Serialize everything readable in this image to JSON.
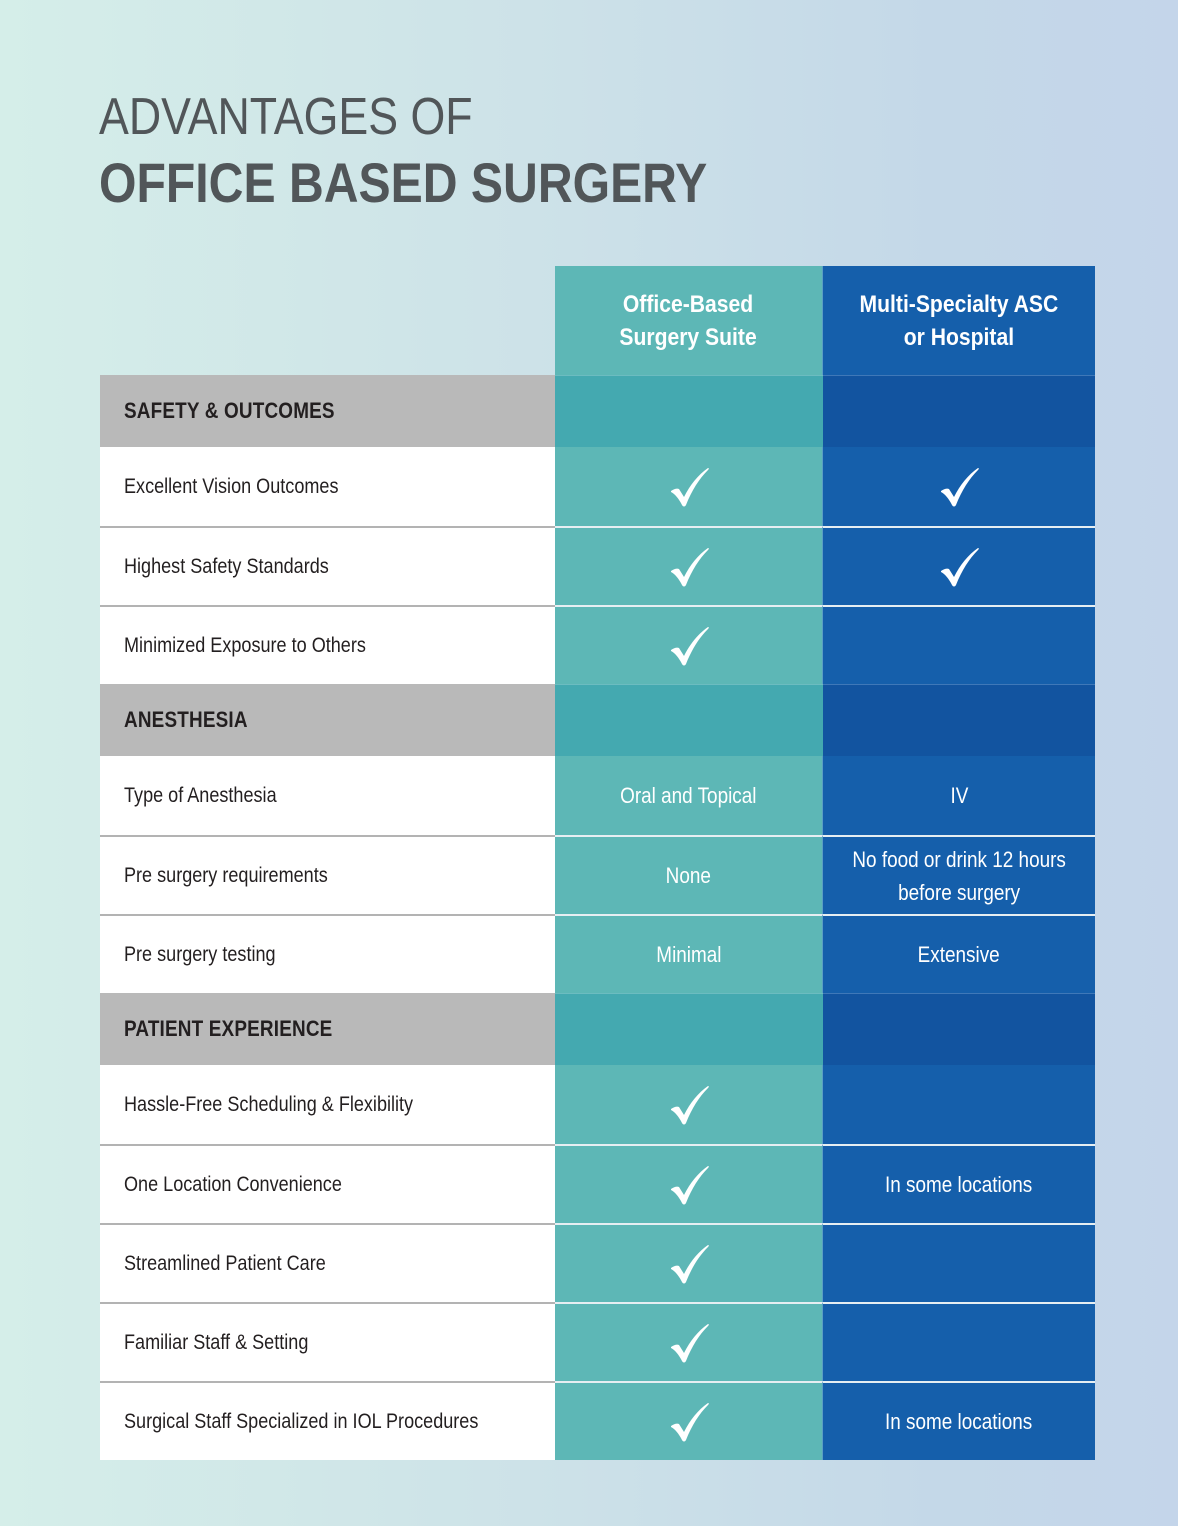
{
  "title": {
    "line1": "ADVANTAGES OF",
    "line2": "OFFICE BASED SURGERY"
  },
  "columns": {
    "office": "Office-Based\nSurgery Suite",
    "hospital": "Multi-Specialty ASC\nor Hospital"
  },
  "colors": {
    "office_column": "#5DB7B6",
    "office_section": "#44A9B0",
    "hospital_column": "#155FAB",
    "hospital_section": "#1254A0",
    "section_label_bg": "#B9B9B9",
    "title_text": "#515659"
  },
  "sections": [
    {
      "label": "SAFETY & OUTCOMES",
      "rows": [
        {
          "label": "Excellent Vision Outcomes",
          "office": "check-icon",
          "hospital": "check-icon"
        },
        {
          "label": "Highest Safety Standards",
          "office": "check-icon",
          "hospital": "check-icon"
        },
        {
          "label": "Minimized Exposure to Others",
          "office": "check-icon",
          "hospital": ""
        }
      ]
    },
    {
      "label": "ANESTHESIA",
      "rows": [
        {
          "label": "Type of Anesthesia",
          "office": "Oral and Topical",
          "hospital": "IV"
        },
        {
          "label": "Pre surgery requirements",
          "office": "None",
          "hospital": "No food or drink 12 hours\nbefore surgery"
        },
        {
          "label": "Pre surgery testing",
          "office": "Minimal",
          "hospital": "Extensive"
        }
      ]
    },
    {
      "label": "PATIENT EXPERIENCE",
      "rows": [
        {
          "label": "Hassle-Free Scheduling & Flexibility",
          "office": "check-icon",
          "hospital": ""
        },
        {
          "label": "One Location Convenience",
          "office": "check-icon",
          "hospital": "In some locations"
        },
        {
          "label": "Streamlined Patient Care",
          "office": "check-icon",
          "hospital": ""
        },
        {
          "label": "Familiar Staff & Setting",
          "office": "check-icon",
          "hospital": ""
        },
        {
          "label": "Surgical Staff Specialized in IOL Procedures",
          "office": "check-icon",
          "hospital": "In some locations"
        }
      ]
    }
  ]
}
